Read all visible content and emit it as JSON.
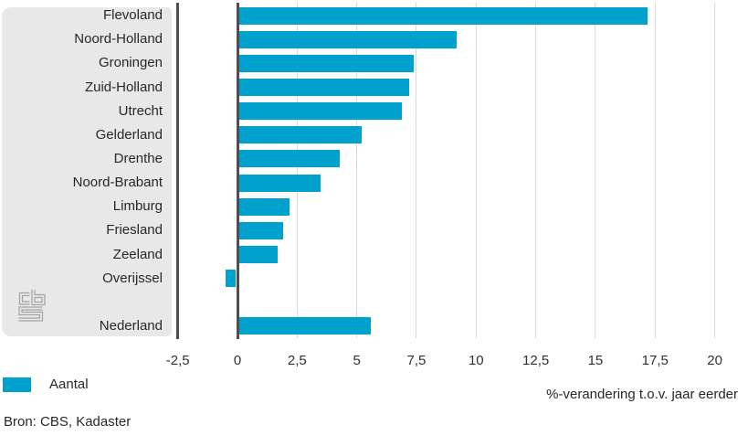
{
  "chart_data": {
    "type": "bar",
    "orientation": "horizontal",
    "title": "",
    "categories": [
      "Flevoland",
      "Noord-Holland",
      "Groningen",
      "Zuid-Holland",
      "Utrecht",
      "Gelderland",
      "Drenthe",
      "Noord-Brabant",
      "Limburg",
      "Friesland",
      "Zeeland",
      "Overijssel",
      "Nederland"
    ],
    "values": [
      17.2,
      9.2,
      7.4,
      7.2,
      6.9,
      5.2,
      4.3,
      3.5,
      2.2,
      1.9,
      1.7,
      -0.5,
      5.6
    ],
    "gap_before_category": "Nederland",
    "xlabel": "%-verandering t.o.v. jaar eerder",
    "xlim": [
      -2.5,
      21
    ],
    "xtick_values": [
      -2.5,
      0,
      2.5,
      5,
      7.5,
      10,
      12.5,
      15,
      17.5,
      20
    ],
    "xticks": [
      "-2,5",
      "0",
      "2,5",
      "5",
      "7,5",
      "10",
      "12,5",
      "15",
      "17,5",
      "20"
    ],
    "grid": true,
    "legend": {
      "position": "bottom-left",
      "items": [
        {
          "label": "Aantal",
          "color": "#00a1cd"
        }
      ]
    },
    "source": "Bron: CBS, Kadaster"
  },
  "colors": {
    "bar": "#00a1cd",
    "panel": "#e8e8e8",
    "axis_line": "#4e4e50",
    "gridline": "#dadada",
    "text": "#272727",
    "logo": "#a3a3a3"
  },
  "branding": {
    "logo": "cbs-logo"
  }
}
